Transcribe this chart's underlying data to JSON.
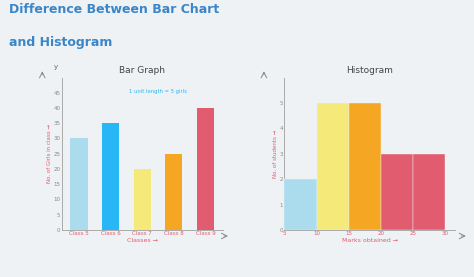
{
  "bg_color": "#eef2f5",
  "title_line1": "Difference Between Bar Chart",
  "title_line2": "and Histogram",
  "title_color": "#3a86c8",
  "title_fontsize": 9,
  "bar_graph": {
    "title": "Bar Graph",
    "categories": [
      "Class 5",
      "Class 6",
      "Class 7",
      "Class 8",
      "Class 9"
    ],
    "values": [
      30,
      35,
      20,
      25,
      40
    ],
    "colors": [
      "#aadcee",
      "#29b6f6",
      "#f5e97a",
      "#f5a623",
      "#e05c6e"
    ],
    "ylabel": "No. of Girls in class →",
    "xlabel": "Classes →",
    "ylim": [
      0,
      50
    ],
    "yticks": [
      0,
      5,
      10,
      15,
      20,
      25,
      30,
      35,
      40,
      45
    ],
    "annotation": "1 unit length = 5 girls",
    "annotation_color": "#29b6f6",
    "label_color": "#e05c6e",
    "tick_color": "#888888"
  },
  "histogram": {
    "title": "Histogram",
    "bin_edges": [
      5,
      10,
      15,
      20,
      25,
      30
    ],
    "values": [
      2,
      5,
      5,
      3,
      3
    ],
    "colors": [
      "#aadcee",
      "#f5e97a",
      "#f5a623",
      "#e05c6e",
      "#e05c6e"
    ],
    "ylabel": "No. of students →",
    "xlabel": "Marks obtained →",
    "ylim": [
      0,
      6
    ],
    "yticks": [
      0,
      1,
      2,
      3,
      4,
      5
    ],
    "label_color": "#e05c6e",
    "tick_color": "#888888"
  }
}
